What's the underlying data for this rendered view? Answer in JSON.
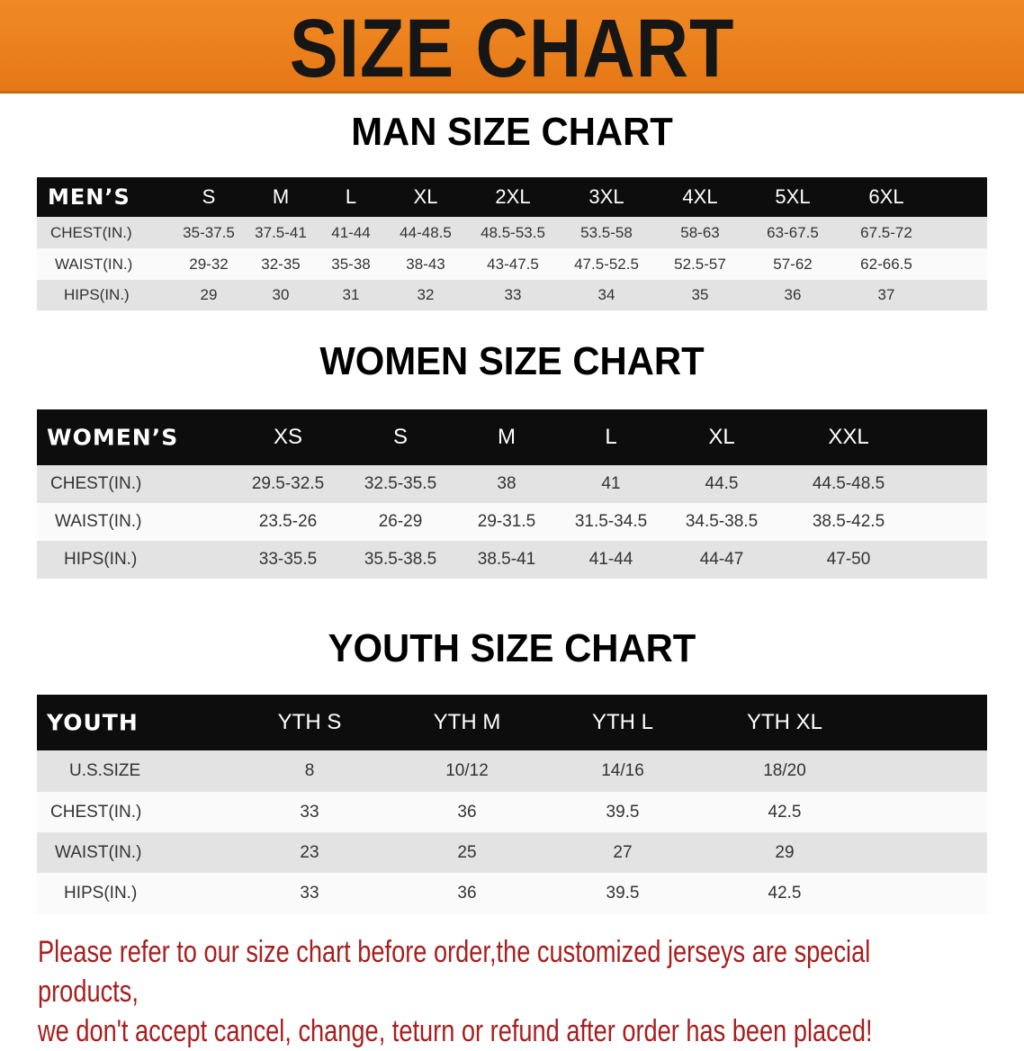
{
  "banner_title": "SIZE CHART",
  "men": {
    "title": "MAN SIZE CHART",
    "header": [
      "MEN’S",
      "S",
      "M",
      "L",
      "XL",
      "2XL",
      "3XL",
      "4XL",
      "5XL",
      "6XL"
    ],
    "rows": [
      [
        "CHEST(IN.)",
        "35-37.5",
        "37.5-41",
        "41-44",
        "44-48.5",
        "48.5-53.5",
        "53.5-58",
        "58-63",
        "63-67.5",
        "67.5-72"
      ],
      [
        "WAIST(IN.)",
        "29-32",
        "32-35",
        "35-38",
        "38-43",
        "43-47.5",
        "47.5-52.5",
        "52.5-57",
        "57-62",
        "62-66.5"
      ],
      [
        "HIPS(IN.)",
        "29",
        "30",
        "31",
        "32",
        "33",
        "34",
        "35",
        "36",
        "37"
      ]
    ]
  },
  "women": {
    "title": "WOMEN SIZE CHART",
    "header": [
      "WOMEN’S",
      "XS",
      "S",
      "M",
      "L",
      "XL",
      "XXL"
    ],
    "rows": [
      [
        "CHEST(IN.)",
        "29.5-32.5",
        "32.5-35.5",
        "38",
        "41",
        "44.5",
        "44.5-48.5"
      ],
      [
        "WAIST(IN.)",
        "23.5-26",
        "26-29",
        "29-31.5",
        "31.5-34.5",
        "34.5-38.5",
        "38.5-42.5"
      ],
      [
        "HIPS(IN.)",
        "33-35.5",
        "35.5-38.5",
        "38.5-41",
        "41-44",
        "44-47",
        "47-50"
      ]
    ]
  },
  "youth": {
    "title": "YOUTH SIZE CHART",
    "header": [
      "YOUTH",
      "YTH S",
      "YTH M",
      "YTH L",
      "YTH XL"
    ],
    "rows": [
      [
        "U.S.SIZE",
        "8",
        "10/12",
        "14/16",
        "18/20"
      ],
      [
        "CHEST(IN.)",
        "33",
        "36",
        "39.5",
        "42.5"
      ],
      [
        "WAIST(IN.)",
        "23",
        "25",
        "27",
        "29"
      ],
      [
        "HIPS(IN.)",
        "33",
        "36",
        "39.5",
        "42.5"
      ]
    ]
  },
  "note": [
    "Please refer to our size chart before order,the customized jerseys are special products,",
    "we don't accept cancel, change, teturn or refund after order has been placed!"
  ],
  "colors": {
    "banner": "#e67815",
    "header_bg": "#0d0d0d",
    "note": "#a81e1e"
  }
}
